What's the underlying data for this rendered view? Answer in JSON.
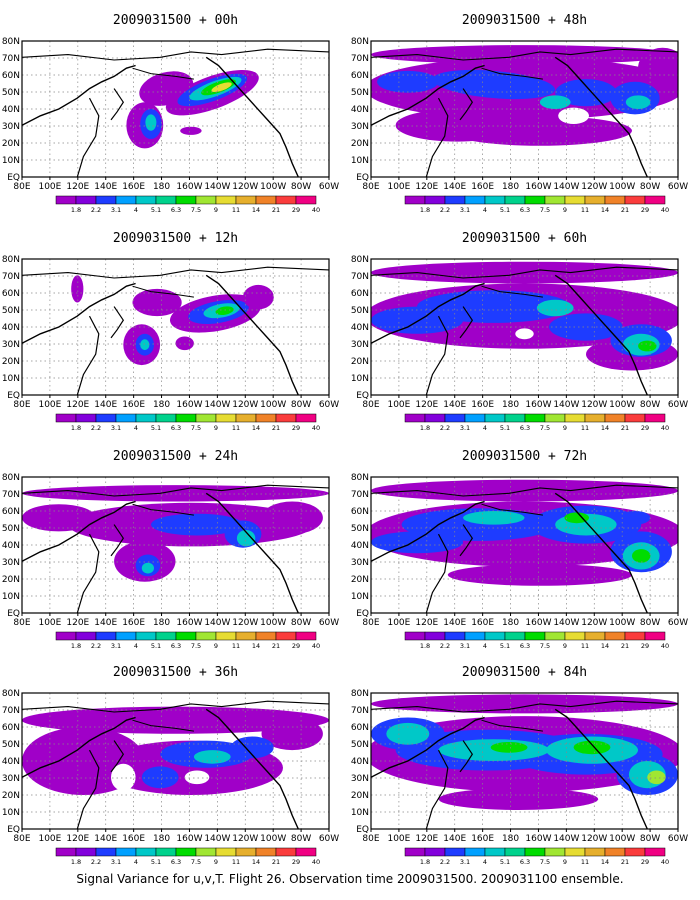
{
  "caption": "Signal Variance for u,v,T. Flight 26. Observation time 2009031500. 2009031100 ensemble.",
  "colors": {
    "scale": [
      "#a000c8",
      "#8200dc",
      "#1e3cff",
      "#00a0ff",
      "#00c8c8",
      "#00d28c",
      "#00dc00",
      "#a0e632",
      "#e6dc32",
      "#e6af2d",
      "#f08228",
      "#fa3c3c",
      "#f00082"
    ]
  },
  "chart_data": {
    "type": "heatmap",
    "x_ticks": [
      "80E",
      "100E",
      "120E",
      "140E",
      "160E",
      "180",
      "160W",
      "140W",
      "120W",
      "100W",
      "80W",
      "60W"
    ],
    "y_ticks": [
      "EQ",
      "10N",
      "20N",
      "30N",
      "40N",
      "50N",
      "60N",
      "70N",
      "80N"
    ],
    "colorbar_labels": [
      "1.8",
      "2.2",
      "3.1",
      "4",
      "5.1",
      "6.3",
      "7.5",
      "9",
      "11",
      "14",
      "21",
      "29",
      "40"
    ],
    "panels": [
      {
        "title": "2009031500 + 00h"
      },
      {
        "title": "2009031500 + 48h"
      },
      {
        "title": "2009031500 + 12h"
      },
      {
        "title": "2009031500 + 60h"
      },
      {
        "title": "2009031500 + 24h"
      },
      {
        "title": "2009031500 + 72h"
      },
      {
        "title": "2009031500 + 36h"
      },
      {
        "title": "2009031500 + 84h"
      }
    ]
  }
}
